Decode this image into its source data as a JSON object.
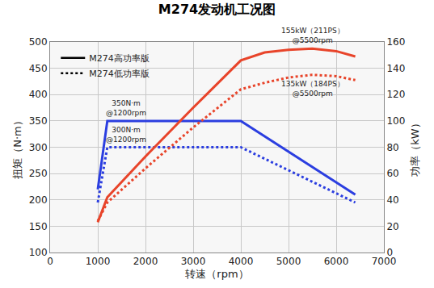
{
  "chart_data": {
    "type": "line",
    "title": "M274发动机工况图",
    "x_label": "转速（rpm）",
    "y_label": "扭矩（N·m）",
    "y2_label": "功率（kW）",
    "xlim": [
      0,
      7000
    ],
    "xticks": [
      0,
      1000,
      2000,
      3000,
      4000,
      5000,
      6000,
      7000
    ],
    "ylim": [
      100,
      500
    ],
    "yticks": [
      100,
      150,
      200,
      250,
      300,
      350,
      400,
      450,
      500
    ],
    "y2lim": [
      0,
      160
    ],
    "y2ticks": [
      0,
      20,
      40,
      60,
      80,
      100,
      120,
      140,
      160
    ],
    "grid": true,
    "legend": "upper left",
    "series": [
      {
        "name": "M274高功率版",
        "color": "#2b3ee0",
        "line_style": "solid",
        "axis": "y",
        "x": [
          1000,
          1200,
          4000,
          6400
        ],
        "values": [
          220,
          350,
          350,
          210
        ]
      },
      {
        "name": "M274低功率版",
        "color": "#2b3ee0",
        "line_style": "dotted",
        "axis": "y",
        "x": [
          1000,
          1200,
          4000,
          6400
        ],
        "values": [
          195,
          300,
          300,
          195
        ]
      },
      {
        "name": "M274高功率版",
        "color": "#e8442a",
        "line_style": "solid",
        "axis": "y2",
        "x": [
          1000,
          1200,
          2000,
          3000,
          4000,
          4500,
          5000,
          5500,
          6000,
          6400
        ],
        "values": [
          23,
          42,
          73,
          110,
          146,
          152,
          154,
          155,
          153,
          149
        ]
      },
      {
        "name": "M274低功率版",
        "color": "#e8442a",
        "line_style": "dotted",
        "axis": "y2",
        "x": [
          1000,
          1200,
          2000,
          3000,
          4000,
          4500,
          5000,
          5500,
          6000,
          6400
        ],
        "values": [
          24,
          38,
          64,
          95,
          124,
          129,
          133,
          135,
          134,
          131
        ]
      }
    ],
    "annotations": [
      {
        "text": "350N·m\n@1200rpm",
        "x": 1200,
        "y": 350,
        "axis": "y"
      },
      {
        "text": "300N·m\n@1200rpm",
        "x": 1200,
        "y": 300,
        "axis": "y"
      },
      {
        "text": "155kW（211PS）\n@5500rpm",
        "x": 5500,
        "y": 155,
        "axis": "y2"
      },
      {
        "text": "135kW（184PS）\n@5500rpm",
        "x": 5500,
        "y": 135,
        "axis": "y2"
      }
    ]
  }
}
